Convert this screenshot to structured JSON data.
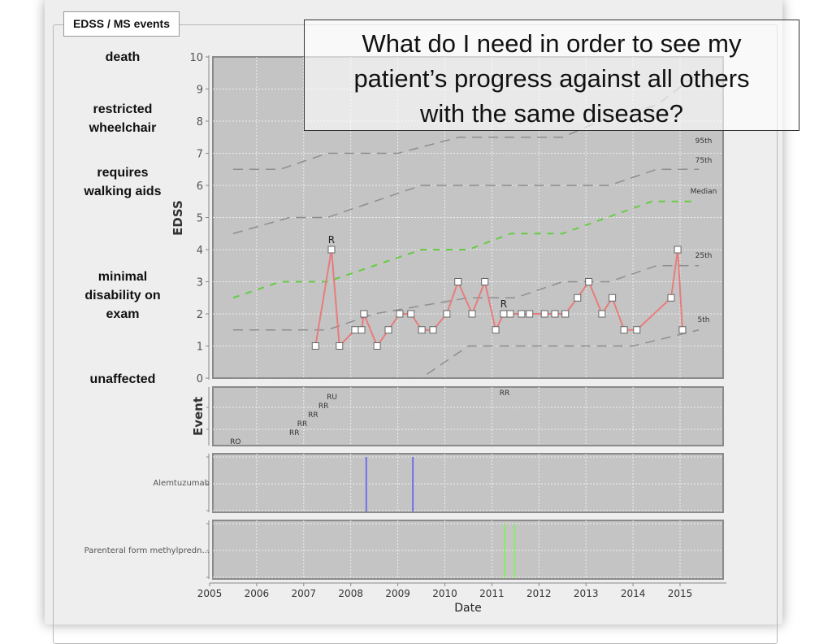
{
  "group_title": "EDSS / MS events",
  "disability_levels": [
    {
      "label": "death",
      "edss": 10
    },
    {
      "label": "restricted\nwheelchair",
      "lines": [
        "restricted",
        "wheelchair"
      ],
      "edss": 8
    },
    {
      "label": "requires walking aids",
      "lines": [
        "requires",
        "walking aids"
      ],
      "edss": 6
    },
    {
      "label": "minimal disability on exam",
      "lines": [
        "minimal",
        "disability on",
        "exam"
      ],
      "edss": 3
    },
    {
      "label": "unaffected",
      "edss": 0
    }
  ],
  "overlay": {
    "lines": [
      "What do I need in order to see my",
      "patient’s progress against all others",
      "with the same disease?"
    ]
  },
  "colors": {
    "plot_bg": "#c4c4c4",
    "patient_line": "#e87c7c",
    "median": "#66cc44",
    "percentile": "#8e8e8e",
    "alemtuzumab": "#6f6fee",
    "methylprednisolone": "#88ee66"
  },
  "chart_data": [
    {
      "type": "line",
      "ylabel": "EDSS",
      "xlabel": "Date",
      "xlim": [
        2005,
        2015.9
      ],
      "ylim": [
        0,
        10
      ],
      "x_ticks": [
        "2005",
        "2006",
        "2007",
        "2008",
        "2009",
        "2010",
        "2011",
        "2012",
        "2013",
        "2014",
        "2015"
      ],
      "y_ticks": [
        "0",
        "1",
        "2",
        "3",
        "4",
        "5",
        "6",
        "7",
        "8",
        "9",
        "10"
      ],
      "grid": true,
      "patient": {
        "x": [
          2007.25,
          2007.59,
          2007.76,
          2008.09,
          2008.23,
          2008.28,
          2008.56,
          2008.8,
          2009.04,
          2009.28,
          2009.51,
          2009.75,
          2010.04,
          2010.28,
          2010.58,
          2010.85,
          2011.08,
          2011.25,
          2011.39,
          2011.63,
          2011.8,
          2012.12,
          2012.34,
          2012.56,
          2012.82,
          2013.06,
          2013.34,
          2013.56,
          2013.81,
          2014.08,
          2014.81,
          2014.95,
          2015.05
        ],
        "y": [
          1,
          4,
          1,
          1.5,
          1.5,
          2,
          1,
          1.5,
          2,
          2,
          1.5,
          1.5,
          2,
          3,
          2,
          3,
          1.5,
          2,
          2,
          2,
          2,
          2,
          2,
          2,
          2.5,
          3,
          2,
          2.5,
          1.5,
          1.5,
          2.5,
          4,
          1.5
        ]
      },
      "annotations": [
        {
          "text": "R",
          "x": 2007.59,
          "y": 4
        },
        {
          "text": "R",
          "x": 2011.25,
          "y": 2
        }
      ],
      "percentiles": [
        {
          "name": "95th",
          "x": [
            2005.5,
            2006.5,
            2007.5,
            2009.0,
            2010.3,
            2012.5,
            2013.3,
            2014.5,
            2015.4
          ],
          "y": [
            6.5,
            6.5,
            7,
            7,
            7.5,
            7.5,
            8,
            8.5,
            9.5
          ]
        },
        {
          "name": "75th",
          "x": [
            2005.5,
            2006.7,
            2007.5,
            2009.5,
            2013.5,
            2014.5,
            2015.4
          ],
          "y": [
            4.5,
            5,
            5,
            6,
            6,
            6.5,
            6.5
          ]
        },
        {
          "name": "Median",
          "x": [
            2005.5,
            2006.5,
            2007.5,
            2009.5,
            2010.5,
            2011.4,
            2012.5,
            2014.4,
            2015.3
          ],
          "y": [
            2.5,
            3,
            3,
            4,
            4,
            4.5,
            4.5,
            5.5,
            5.5
          ]
        },
        {
          "name": "25th",
          "x": [
            2005.5,
            2007.5,
            2008.5,
            2010.5,
            2011.5,
            2012.5,
            2013.5,
            2014.5,
            2015.4
          ],
          "y": [
            1.5,
            1.5,
            2,
            2.5,
            2.5,
            3,
            3,
            3.5,
            3.5
          ]
        },
        {
          "name": "5th",
          "x": [
            2005.5,
            2009.5,
            2010.5,
            2014.0,
            2015.4
          ],
          "y": [
            0,
            0,
            1,
            1,
            1.5
          ]
        }
      ]
    },
    {
      "type": "scatter",
      "ylabel": "Event",
      "events": [
        {
          "label": "RO",
          "x": 2005.55,
          "level": 0
        },
        {
          "label": "RR",
          "x": 2006.8,
          "level": 1
        },
        {
          "label": "RR",
          "x": 2006.97,
          "level": 2
        },
        {
          "label": "RR",
          "x": 2007.2,
          "level": 3
        },
        {
          "label": "RR",
          "x": 2007.42,
          "level": 4
        },
        {
          "label": "RU",
          "x": 2007.6,
          "level": 5
        },
        {
          "label": "RR",
          "x": 2011.27,
          "level": 6
        }
      ]
    },
    {
      "type": "bar",
      "ylabel": "Alemtuzumab",
      "x": [
        2008.33,
        2009.32
      ]
    },
    {
      "type": "bar",
      "ylabel": "Parenteral form methylpredn...",
      "x": [
        2011.27,
        2011.48
      ]
    }
  ]
}
